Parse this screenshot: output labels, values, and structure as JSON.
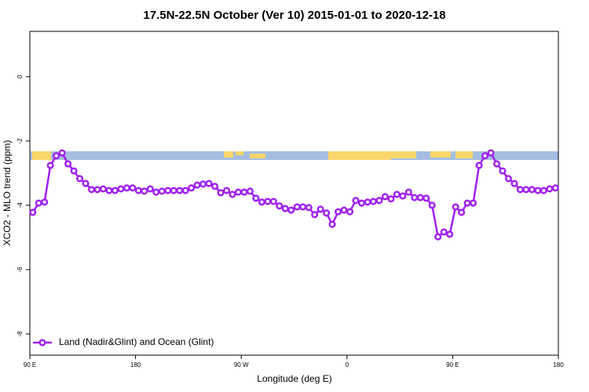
{
  "chart_data": {
    "type": "line",
    "title": "17.5N-22.5N October (Ver 10)   2015-01-01 to 2020-12-18",
    "xlabel": "Longitude (deg E)",
    "ylabel": "XCO2 - MLO trend (ppm)",
    "xlim": [
      90,
      540
    ],
    "xticks": [
      {
        "value": 90,
        "label": "90 E"
      },
      180,
      {
        "value": 270,
        "label": "90 W"
      },
      {
        "value": 360,
        "label": "0"
      },
      {
        "value": 450,
        "label": "90 E"
      },
      {
        "value": 540,
        "label": "180"
      }
    ],
    "ylim": [
      -8.66,
      1.41
    ],
    "yticks": [
      0,
      -2,
      -4,
      -6,
      -8
    ],
    "legend": "bottom-left",
    "x": [
      92.5,
      97.5,
      102.5,
      107.5,
      112.5,
      117.5,
      122.5,
      127.5,
      132.5,
      137.5,
      142.5,
      147.5,
      152.5,
      157.5,
      162.5,
      167.5,
      172.5,
      177.5,
      182.5,
      187.5,
      192.5,
      197.5,
      202.5,
      207.5,
      212.5,
      217.5,
      222.5,
      227.5,
      232.5,
      237.5,
      242.5,
      247.5,
      252.5,
      257.5,
      262.5,
      267.5,
      272.5,
      277.5,
      282.5,
      287.5,
      292.5,
      297.5,
      302.5,
      307.5,
      312.5,
      317.5,
      322.5,
      327.5,
      332.5,
      337.5,
      342.5,
      347.5,
      352.5,
      357.5,
      362.5,
      367.5,
      372.5,
      377.5,
      382.5,
      387.5,
      392.5,
      397.5,
      402.5,
      407.5,
      412.5,
      417.5,
      422.5,
      427.5,
      432.5,
      437.5,
      442.5,
      447.5,
      452.5,
      457.5,
      462.5,
      467.5,
      472.5,
      477.5,
      482.5,
      487.5,
      492.5,
      497.5,
      502.5,
      507.5,
      512.5,
      517.5,
      522.5,
      527.5,
      532.5,
      537.5
    ],
    "series": [
      {
        "name": "Land (Nadir&Glint) and Ocean (Glint)",
        "color": "#a020f0",
        "values": [
          -4.22,
          -3.93,
          -3.9,
          -2.76,
          -2.46,
          -2.37,
          -2.71,
          -2.93,
          -3.17,
          -3.32,
          -3.51,
          -3.51,
          -3.49,
          -3.54,
          -3.54,
          -3.49,
          -3.46,
          -3.46,
          -3.54,
          -3.56,
          -3.49,
          -3.59,
          -3.56,
          -3.54,
          -3.54,
          -3.54,
          -3.54,
          -3.46,
          -3.37,
          -3.34,
          -3.32,
          -3.41,
          -3.61,
          -3.54,
          -3.66,
          -3.59,
          -3.59,
          -3.56,
          -3.78,
          -3.9,
          -3.88,
          -3.88,
          -4.02,
          -4.1,
          -4.15,
          -4.05,
          -4.05,
          -4.07,
          -4.29,
          -4.12,
          -4.24,
          -4.59,
          -4.2,
          -4.15,
          -4.2,
          -3.85,
          -3.93,
          -3.9,
          -3.88,
          -3.85,
          -3.73,
          -3.8,
          -3.66,
          -3.71,
          -3.59,
          -3.76,
          -3.76,
          -3.78,
          -4.0,
          -4.98,
          -4.83,
          -4.9,
          -4.05,
          -4.22,
          -3.93,
          -3.93,
          -2.76,
          -2.46,
          -2.37,
          -2.71,
          -2.93,
          -3.17,
          -3.32,
          -3.51,
          -3.51,
          -3.51,
          -3.54,
          -3.54,
          -3.49,
          -3.46
        ]
      }
    ]
  }
}
